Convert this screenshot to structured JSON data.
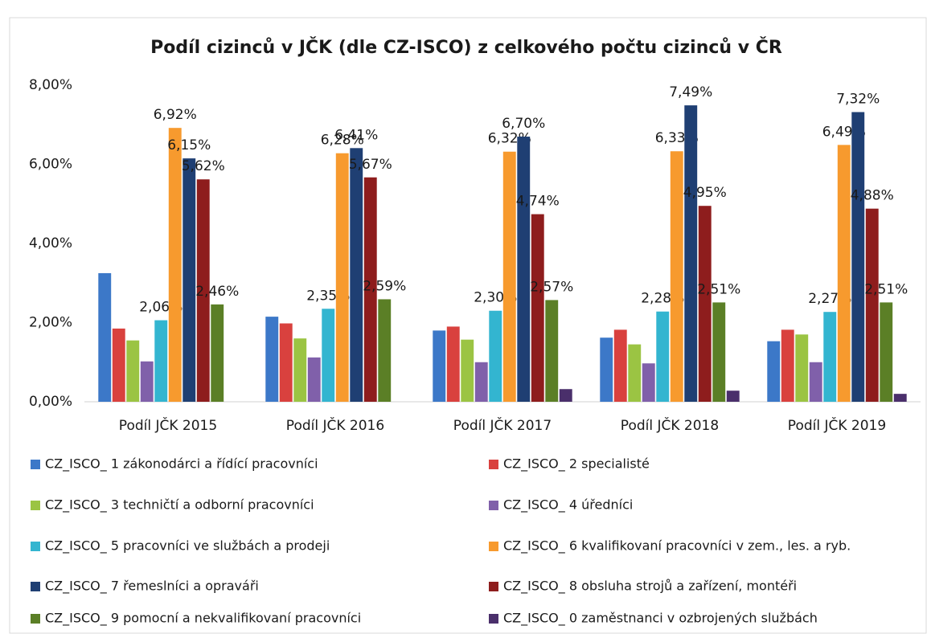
{
  "chart_data": {
    "type": "bar",
    "title": "Podíl cizinců v JČK (dle CZ-ISCO) z celkového počtu cizinců v ČR",
    "categories": [
      "Podíl JČK 2015",
      "Podíl JČK 2016",
      "Podíl JČK 2017",
      "Podíl JČK 2018",
      "Podíl JČK 2019"
    ],
    "ylim": [
      0,
      8
    ],
    "yticks": [
      {
        "value": 0,
        "label": "0,00%"
      },
      {
        "value": 2,
        "label": "2,00%"
      },
      {
        "value": 4,
        "label": "4,00%"
      },
      {
        "value": 6,
        "label": "6,00%"
      },
      {
        "value": 8,
        "label": "8,00%"
      }
    ],
    "grid": false,
    "legend": "bottom",
    "series": [
      {
        "name": "CZ_ISCO_ 1 zákonodárci a řídící pracovníci",
        "color": "#3c78c8",
        "values": [
          3.25,
          2.15,
          1.8,
          1.62,
          1.53
        ]
      },
      {
        "name": "CZ_ISCO_ 2 specialisté",
        "color": "#d9413e",
        "values": [
          1.85,
          1.98,
          1.9,
          1.82,
          1.82
        ]
      },
      {
        "name": "CZ_ISCO_ 3 techničtí a odborní pracovníci",
        "color": "#9bc443",
        "values": [
          1.55,
          1.6,
          1.57,
          1.45,
          1.7
        ]
      },
      {
        "name": "CZ_ISCO_ 4 úředníci",
        "color": "#8060aa",
        "values": [
          1.02,
          1.12,
          1.0,
          0.97,
          1.0
        ]
      },
      {
        "name": "CZ_ISCO_ 5 pracovníci ve službách a prodeji",
        "color": "#33b5d0",
        "values": [
          2.06,
          2.35,
          2.3,
          2.28,
          2.27
        ],
        "value_labels": [
          "2,06%",
          "2,35%",
          "2,30%",
          "2,28%",
          "2,27%"
        ]
      },
      {
        "name": "CZ_ISCO_ 6 kvalifikovaní pracovníci v zem., les. a ryb.",
        "color": "#f79a2e",
        "values": [
          6.92,
          6.28,
          6.32,
          6.33,
          6.49
        ],
        "value_labels": [
          "6,92%",
          "6,28%",
          "6,32%",
          "6,33%",
          "6,49%"
        ]
      },
      {
        "name": "CZ_ISCO_ 7 řemeslníci a opraváři",
        "color": "#1f3f73",
        "values": [
          6.15,
          6.41,
          6.7,
          7.49,
          7.32
        ],
        "value_labels": [
          "6,15%",
          "6,41%",
          "6,70%",
          "7,49%",
          "7,32%"
        ]
      },
      {
        "name": "CZ_ISCO_ 8 obsluha strojů a zařízení, montéři",
        "color": "#8e1d1d",
        "values": [
          5.62,
          5.67,
          4.74,
          4.95,
          4.88
        ],
        "value_labels": [
          "5,62%",
          "5,67%",
          "4,74%",
          "4,95%",
          "4,88%"
        ]
      },
      {
        "name": "CZ_ISCO_ 9 pomocní a nekvalifikovaní pracovníci",
        "color": "#5b7f26",
        "values": [
          2.46,
          2.59,
          2.57,
          2.51,
          2.51
        ],
        "value_labels": [
          "2,46%",
          "2,59%",
          "2,57%",
          "2,51%",
          "2,51%"
        ]
      },
      {
        "name": "CZ_ISCO_ 0 zaměstnanci v ozbrojených službách",
        "color": "#4a2f6b",
        "values": [
          null,
          null,
          0.32,
          0.28,
          0.2
        ]
      }
    ]
  }
}
